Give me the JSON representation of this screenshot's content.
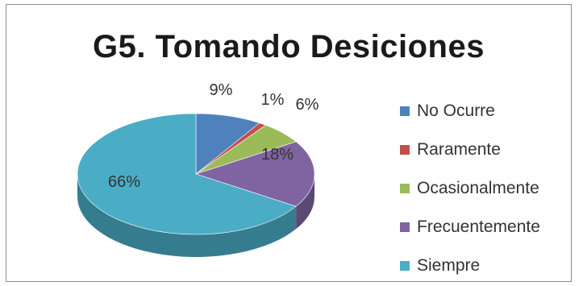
{
  "chart_data": {
    "type": "pie",
    "title": "G5. Tomando Desiciones",
    "categories": [
      "No Ocurre",
      "Raramente",
      "Ocasionalmente",
      "Frecuentemente",
      "Siempre"
    ],
    "values": [
      9,
      1,
      6,
      18,
      66
    ],
    "labels": [
      "9%",
      "1%",
      "6%",
      "18%",
      "66%"
    ],
    "colors": [
      "#4f81bd",
      "#c0504d",
      "#9bbb59",
      "#8064a2",
      "#4bacc6"
    ],
    "legend_position": "right",
    "style": "3d"
  }
}
